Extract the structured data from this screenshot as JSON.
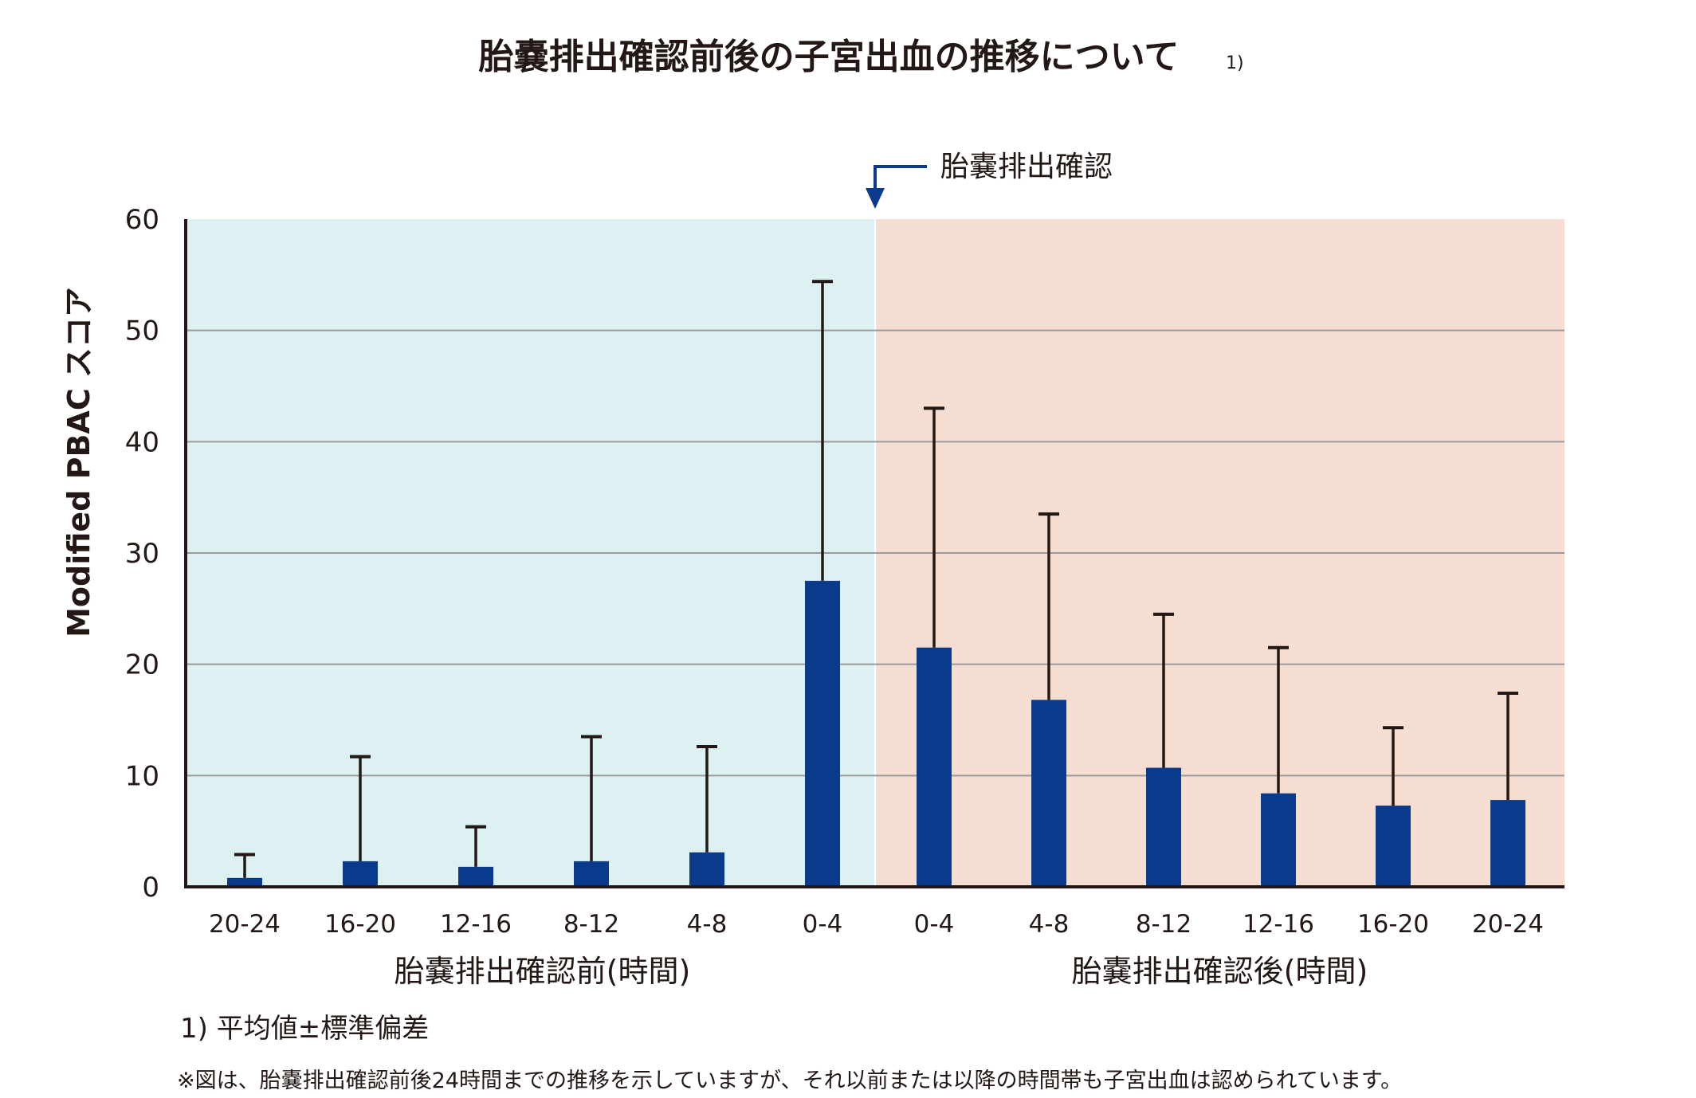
{
  "chart_data": {
    "type": "bar",
    "title": "胎嚢排出確認前後の子宮出血の推移について",
    "title_note": "1)",
    "ylabel": "Modified PBAC スコア",
    "ylim": [
      0,
      60
    ],
    "yticks": [
      "0",
      "10",
      "20",
      "30",
      "40",
      "50",
      "60"
    ],
    "grid": true,
    "annotation": "胎嚢排出確認",
    "categories": [
      "20-24",
      "16-20",
      "12-16",
      "8-12",
      "4-8",
      "0-4",
      "0-4",
      "4-8",
      "8-12",
      "12-16",
      "16-20",
      "20-24"
    ],
    "groups": [
      {
        "label": "胎嚢排出確認前(時間)",
        "count": 6,
        "background": "#ddf0f2"
      },
      {
        "label": "胎嚢排出確認後(時間)",
        "count": 6,
        "background": "#f6ddd2"
      }
    ],
    "series": [
      {
        "name": "平均値",
        "values": [
          0.8,
          2.3,
          1.8,
          2.3,
          3.1,
          27.5,
          21.5,
          16.8,
          10.7,
          8.4,
          7.3,
          7.8
        ],
        "color": "#0a3a8c"
      },
      {
        "name": "平均値+標準偏差",
        "values": [
          2.9,
          11.7,
          5.4,
          13.5,
          12.6,
          54.4,
          43.0,
          33.5,
          24.5,
          21.5,
          14.3,
          17.4
        ],
        "color": "#231815"
      }
    ],
    "footnote": "1) 平均値±標準偏差",
    "note": "※図は、胎嚢排出確認前後24時間までの推移を示していますが、それ以前または以降の時間帯も子宮出血は認められています。"
  }
}
